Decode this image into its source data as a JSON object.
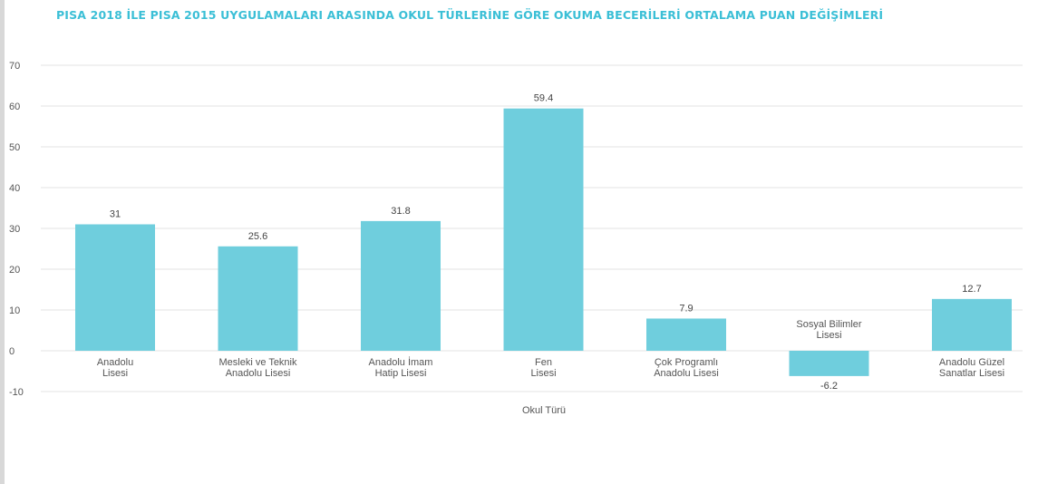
{
  "colors": {
    "title": "#3bbfd6",
    "bar": "#6fcedd",
    "grid": "#e3e3e3",
    "text": "#555555"
  },
  "chart_data": {
    "type": "bar",
    "title": "PISA 2018 İLE PISA 2015 UYGULAMALARI ARASINDA OKUL TÜRLERİNE GÖRE OKUMA BECERİLERİ ORTALAMA PUAN DEĞİŞİMLERİ",
    "xlabel": "Okul Türü",
    "ylabel": "",
    "ylim": [
      -10,
      70
    ],
    "yticks": [
      70,
      60,
      50,
      40,
      30,
      20,
      10,
      0,
      -10
    ],
    "grid": true,
    "categories": [
      [
        "Anadolu",
        "Lisesi"
      ],
      [
        "Mesleki ve Teknik",
        "Anadolu Lisesi"
      ],
      [
        "Anadolu İmam",
        "Hatip Lisesi"
      ],
      [
        "Fen",
        "Lisesi"
      ],
      [
        "Çok Programlı",
        "Anadolu Lisesi"
      ],
      [
        "Sosyal Bilimler",
        "Lisesi"
      ],
      [
        "Anadolu Güzel",
        "Sanatlar Lisesi"
      ]
    ],
    "values": [
      31,
      25.6,
      31.8,
      59.4,
      7.9,
      -6.2,
      12.7
    ],
    "value_labels": [
      "31",
      "25.6",
      "31.8",
      "59.4",
      "7.9",
      "-6.2",
      "12.7"
    ]
  }
}
